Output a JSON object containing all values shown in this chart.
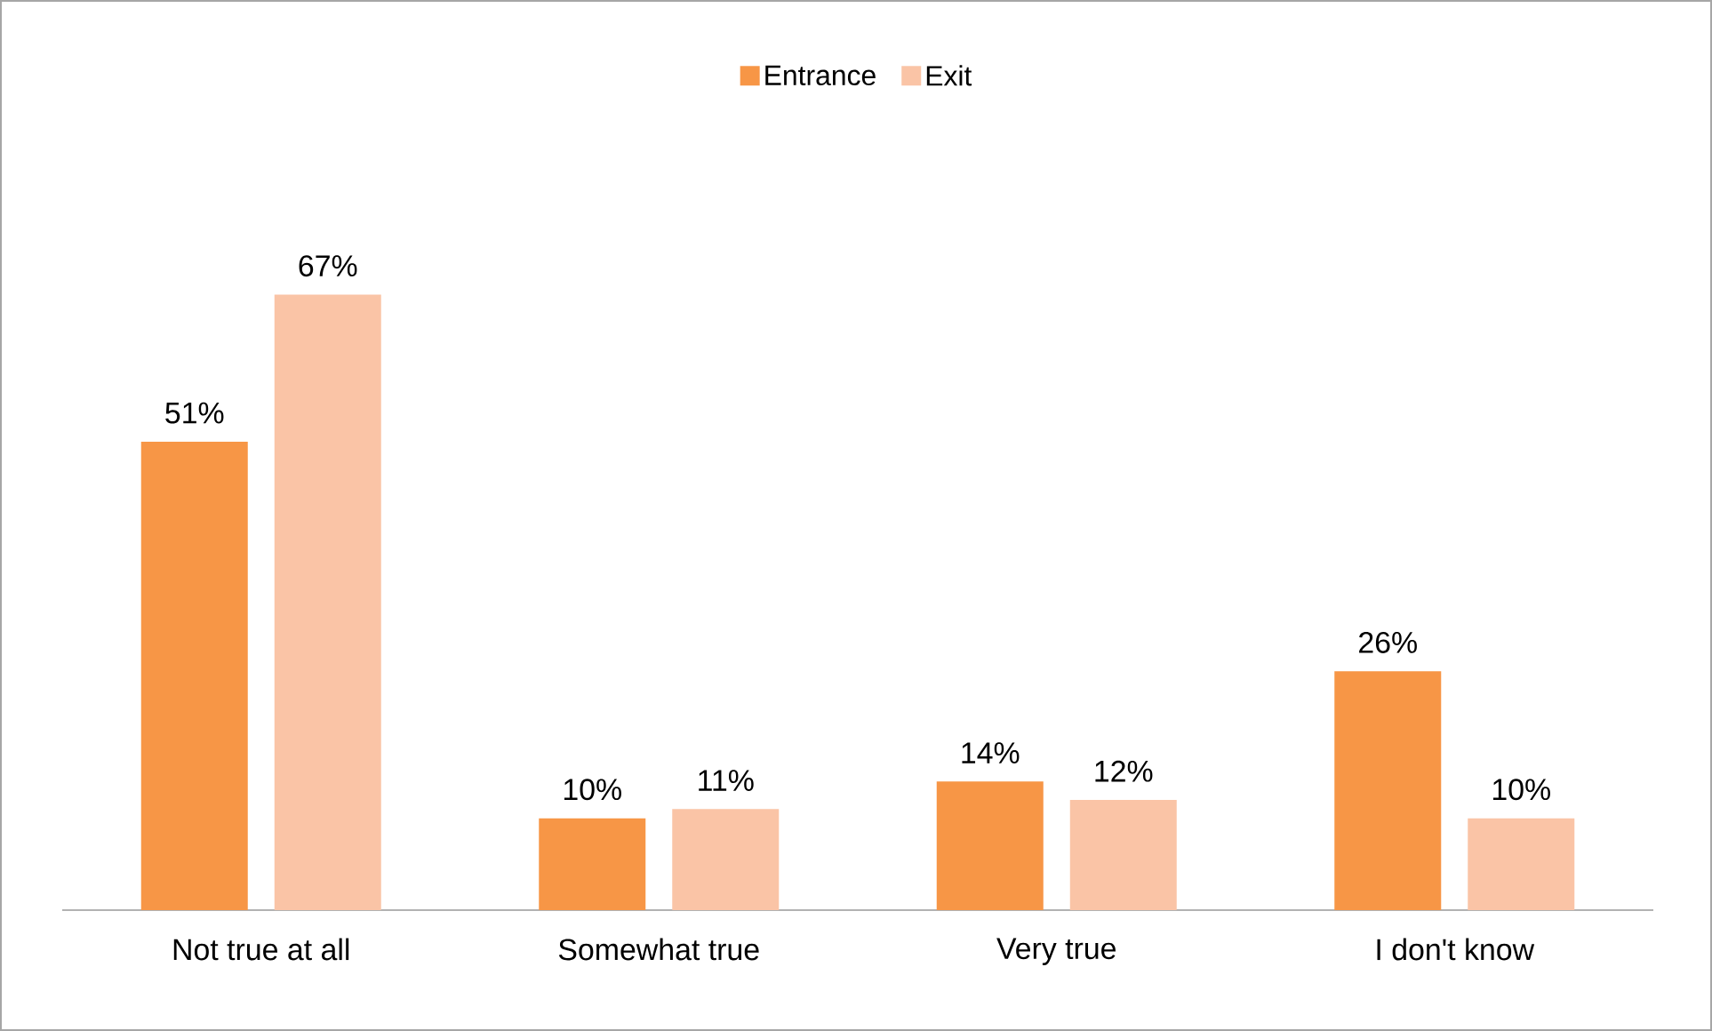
{
  "chart_data": {
    "type": "bar",
    "categories": [
      "Not true at all",
      "Somewhat true",
      "Very true",
      "I don't know"
    ],
    "series": [
      {
        "name": "Entrance",
        "color": "#f79646",
        "values": [
          51,
          10,
          14,
          26
        ],
        "value_labels": [
          "51%",
          "10%",
          "14%",
          "26%"
        ]
      },
      {
        "name": "Exit",
        "color": "#fac4a6",
        "values": [
          67,
          11,
          12,
          10
        ],
        "value_labels": [
          "67%",
          "11%",
          "12%",
          "10%"
        ]
      }
    ],
    "legend": "top"
  }
}
